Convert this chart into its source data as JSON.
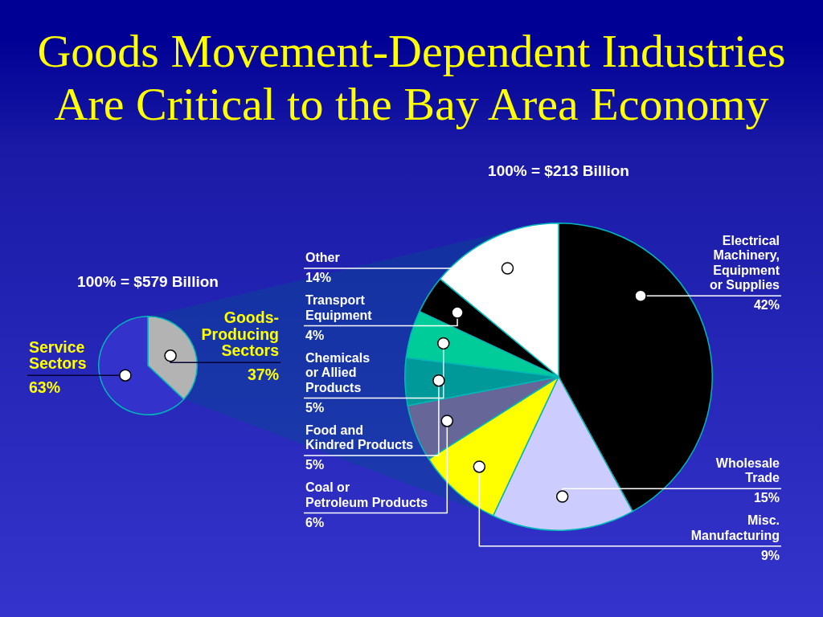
{
  "chart_data": [
    {
      "type": "pie",
      "title": "Goods Movement-Dependent Industries Are Critical to the Bay Area Economy",
      "subtitle": "100% = $579 Billion",
      "categories": [
        "Goods-\nProducing\nSectors",
        "Service\nSectors"
      ],
      "values": [
        37,
        63
      ],
      "colors": [
        "#b3b3b3",
        "#3333cc"
      ],
      "value_labels": [
        "37%",
        "63%"
      ]
    },
    {
      "type": "pie",
      "subtitle": "100% = $213 Billion",
      "categories": [
        "Electrical\nMachinery,\nEquipment\nor Supplies",
        "Wholesale\nTrade",
        "Misc.\nManufacturing",
        "Coal or\nPetroleum Products",
        "Food and\nKindred Products",
        "Chemicals\nor Allied\nProducts",
        "Transport\nEquipment",
        "Other"
      ],
      "values": [
        42,
        15,
        9,
        6,
        5,
        5,
        4,
        14
      ],
      "colors": [
        "#000000",
        "#ccccff",
        "#ffff00",
        "#666699",
        "#009999",
        "#00cc99",
        "#000000",
        "#ffffff"
      ],
      "value_labels": [
        "42%",
        "15%",
        "9%",
        "6%",
        "5%",
        "5%",
        "4%",
        "14%"
      ]
    }
  ]
}
